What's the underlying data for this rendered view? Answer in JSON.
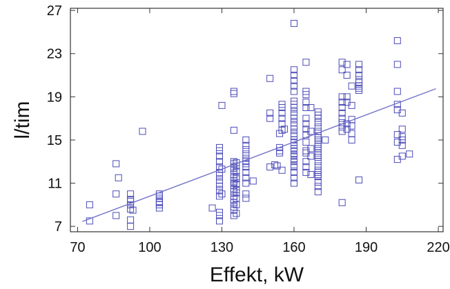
{
  "chart_data": {
    "type": "scatter",
    "title": "",
    "xlabel": "Effekt, kW",
    "ylabel": "l/tim",
    "xlim": [
      67,
      222
    ],
    "ylim": [
      6.5,
      27.2
    ],
    "xticks": [
      70,
      100,
      130,
      160,
      190,
      220
    ],
    "yticks": [
      7,
      11,
      15,
      19,
      23,
      27
    ],
    "grid": false,
    "marker": "open-square",
    "colors": {
      "points": "#4a4ab8",
      "fit_line": "#7070c8",
      "axes": "#333333"
    },
    "fit_line": {
      "x": [
        72,
        219
      ],
      "y": [
        7.45,
        19.75
      ]
    },
    "series": [
      {
        "x": [
          75,
          75,
          86,
          86,
          86,
          87,
          92,
          92,
          92,
          92,
          92,
          92,
          92,
          93,
          97,
          104,
          104,
          104,
          104,
          104,
          104,
          104,
          126,
          129,
          129,
          129,
          129,
          129,
          129,
          129,
          129,
          129,
          129,
          129,
          129,
          129,
          129,
          129,
          130,
          130,
          130,
          135,
          135,
          135,
          135,
          135,
          135,
          135,
          135,
          135,
          135,
          135,
          135,
          135,
          135,
          135,
          135,
          135,
          135,
          135,
          135,
          136,
          136,
          136,
          136,
          136,
          136,
          136,
          136,
          136,
          136,
          136,
          140,
          140,
          140,
          140,
          140,
          140,
          140,
          140,
          140,
          140,
          140,
          140,
          140,
          143,
          150,
          150,
          150,
          150,
          152,
          153,
          154,
          154,
          154,
          154,
          155,
          155,
          155,
          155,
          155,
          155,
          155,
          156,
          160,
          160,
          160,
          160,
          160,
          160,
          160,
          160,
          160,
          160,
          160,
          160,
          160,
          160,
          160,
          160,
          160,
          160,
          160,
          160,
          160,
          160,
          160,
          160,
          160,
          160,
          160,
          160,
          160,
          160,
          160,
          165,
          165,
          165,
          165,
          165,
          165,
          165,
          165,
          165,
          165,
          165,
          165,
          165,
          165,
          165,
          167,
          167,
          167,
          167,
          167,
          170,
          170,
          170,
          170,
          170,
          170,
          170,
          170,
          170,
          170,
          170,
          170,
          170,
          170,
          170,
          170,
          170,
          170,
          170,
          170,
          170,
          170,
          170,
          170,
          173,
          180,
          180,
          180,
          180,
          180,
          180,
          180,
          180,
          180,
          180,
          180,
          182,
          182,
          182,
          182,
          182,
          182,
          184,
          184,
          184,
          184,
          184,
          184,
          187,
          187,
          187,
          187,
          187,
          187,
          187,
          187,
          187,
          203,
          203,
          203,
          203,
          203,
          203,
          203,
          203,
          205,
          205,
          205,
          205,
          205,
          205,
          208
        ],
        "y": [
          7.5,
          9.0,
          8.0,
          10.0,
          12.8,
          11.5,
          7.0,
          7.6,
          8.6,
          9.0,
          9.3,
          10.0,
          9.5,
          8.5,
          15.8,
          8.7,
          9.0,
          9.3,
          9.6,
          9.8,
          10.0,
          9.2,
          8.7,
          8.0,
          8.3,
          7.5,
          9.8,
          10.3,
          10.7,
          11.0,
          11.3,
          11.7,
          12.0,
          12.5,
          13.0,
          13.5,
          14.0,
          14.3,
          12.3,
          10.0,
          18.2,
          8.0,
          8.5,
          8.8,
          9.2,
          9.5,
          9.8,
          10.2,
          10.5,
          10.8,
          11.2,
          11.5,
          11.8,
          12.2,
          12.5,
          12.8,
          13.0,
          15.9,
          19.3,
          19.5,
          11.0,
          8.2,
          9.0,
          9.6,
          10.1,
          10.4,
          10.9,
          11.6,
          12.1,
          12.6,
          12.9,
          11.4,
          9.6,
          10.0,
          11.0,
          11.5,
          12.0,
          12.5,
          13.0,
          13.3,
          13.7,
          14.1,
          14.5,
          15.0,
          12.8,
          11.2,
          12.5,
          17.0,
          17.5,
          20.7,
          12.7,
          12.6,
          13.8,
          14.0,
          14.3,
          15.6,
          16.5,
          17.0,
          17.5,
          18.0,
          18.3,
          15.9,
          12.2,
          16.0,
          11.0,
          11.5,
          12.0,
          12.5,
          13.0,
          13.5,
          14.0,
          14.5,
          15.0,
          15.3,
          15.6,
          16.0,
          16.3,
          16.6,
          17.0,
          17.3,
          17.6,
          18.0,
          18.3,
          18.6,
          19.5,
          20.0,
          20.5,
          21.0,
          21.5,
          25.8,
          14.8,
          12.7,
          13.2,
          13.7,
          14.2,
          12.0,
          12.5,
          13.0,
          13.8,
          14.0,
          14.8,
          15.5,
          16.0,
          16.5,
          17.0,
          18.0,
          18.5,
          19.2,
          19.5,
          22.2,
          11.8,
          13.5,
          15.8,
          14.2,
          18.0,
          10.2,
          10.7,
          11.1,
          11.8,
          12.2,
          12.6,
          13.0,
          13.4,
          13.8,
          14.2,
          14.6,
          15.0,
          15.4,
          15.8,
          16.2,
          16.6,
          17.0,
          17.3,
          17.6,
          12.0,
          11.6,
          13.6,
          14.4,
          15.2,
          15.0,
          9.2,
          15.8,
          16.2,
          16.6,
          17.0,
          17.5,
          18.0,
          18.5,
          19.0,
          21.5,
          22.2,
          16.0,
          16.5,
          18.5,
          19.0,
          22.0,
          21.0,
          15.0,
          15.6,
          16.3,
          16.9,
          18.2,
          20.0,
          11.3,
          19.6,
          20.0,
          20.3,
          20.6,
          21.0,
          21.5,
          22.0,
          19.8,
          13.2,
          14.8,
          15.5,
          17.8,
          18.3,
          19.5,
          22.0,
          24.2,
          14.5,
          15.0,
          15.3,
          16.0,
          17.5,
          13.5,
          13.7
        ]
      }
    ]
  }
}
